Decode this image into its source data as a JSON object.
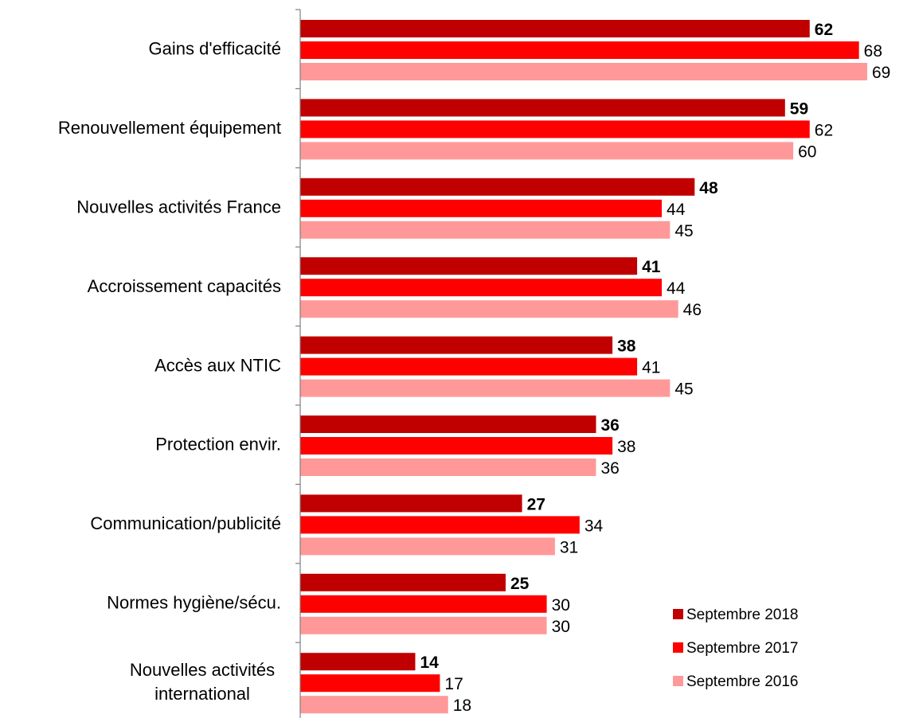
{
  "chart_data": {
    "type": "bar",
    "orientation": "horizontal",
    "categories": [
      [
        "Gains d'efficacité"
      ],
      [
        "Renouvellement équipement"
      ],
      [
        "Nouvelles activités France"
      ],
      [
        "Accroissement capacités"
      ],
      [
        "Accès aux NTIC"
      ],
      [
        "Protection envir."
      ],
      [
        "Communication/publicité"
      ],
      [
        "Normes hygiène/sécu."
      ],
      [
        "Nouvelles activités",
        "international"
      ]
    ],
    "series": [
      {
        "name": "Septembre 2018",
        "color": "#c00000",
        "bold_labels": true,
        "values": [
          62,
          59,
          48,
          41,
          38,
          36,
          27,
          25,
          14
        ]
      },
      {
        "name": "Septembre 2017",
        "color": "#ff0000",
        "bold_labels": false,
        "values": [
          68,
          62,
          44,
          44,
          41,
          38,
          34,
          30,
          17
        ]
      },
      {
        "name": "Septembre 2016",
        "color": "#ff9999",
        "bold_labels": false,
        "values": [
          69,
          60,
          45,
          46,
          45,
          36,
          31,
          30,
          18
        ]
      }
    ],
    "xlim": [
      0,
      69
    ],
    "grid": false,
    "legend_position": "bottom-right"
  }
}
